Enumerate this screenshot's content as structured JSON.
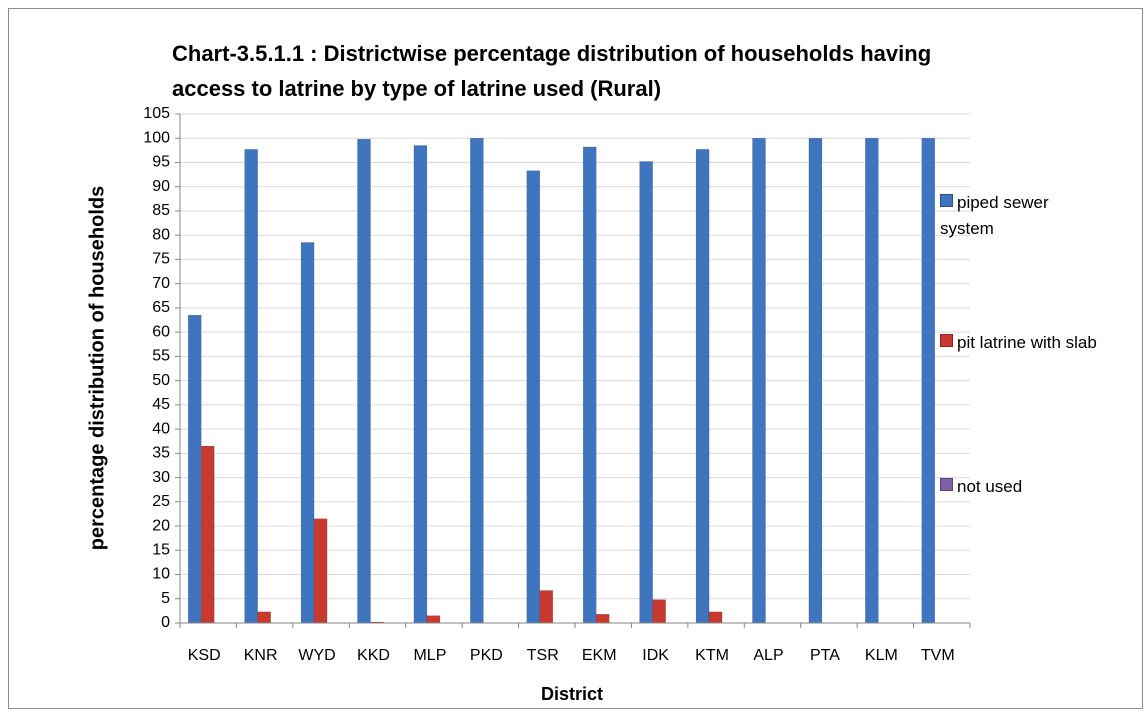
{
  "chart_data": {
    "type": "bar",
    "title": "Chart-3.5.1.1 :  Districtwise percentage distribution of households having access to latrine by type of latrine used (Rural)",
    "x_label": "District",
    "y_label": "percentage distribution of households",
    "categories": [
      "KSD",
      "KNR",
      "WYD",
      "KKD",
      "MLP",
      "PKD",
      "TSR",
      "EKM",
      "IDK",
      "KTM",
      "ALP",
      "PTA",
      "KLM",
      "TVM"
    ],
    "series": [
      {
        "name": "piped sewer system",
        "color": "#3f74bf",
        "values": [
          63.5,
          97.7,
          78.5,
          99.8,
          98.5,
          100,
          93.3,
          98.2,
          95.2,
          97.7,
          100,
          100,
          100,
          100
        ]
      },
      {
        "name": "pit latrine with slab",
        "color": "#c8392f",
        "values": [
          36.5,
          2.3,
          21.5,
          0.2,
          1.5,
          0,
          6.7,
          1.8,
          4.8,
          2.3,
          0,
          0,
          0,
          0
        ]
      },
      {
        "name": "not used",
        "color": "#7f5fa8",
        "values": [
          0,
          0,
          0,
          0,
          0,
          0,
          0,
          0,
          0,
          0,
          0,
          0,
          0,
          0
        ]
      }
    ],
    "ylim": [
      0,
      105
    ],
    "yticks": [
      0,
      5,
      10,
      15,
      20,
      25,
      30,
      35,
      40,
      45,
      50,
      55,
      60,
      65,
      70,
      75,
      80,
      85,
      90,
      95,
      100,
      105
    ],
    "grid": true,
    "legend": "right"
  }
}
